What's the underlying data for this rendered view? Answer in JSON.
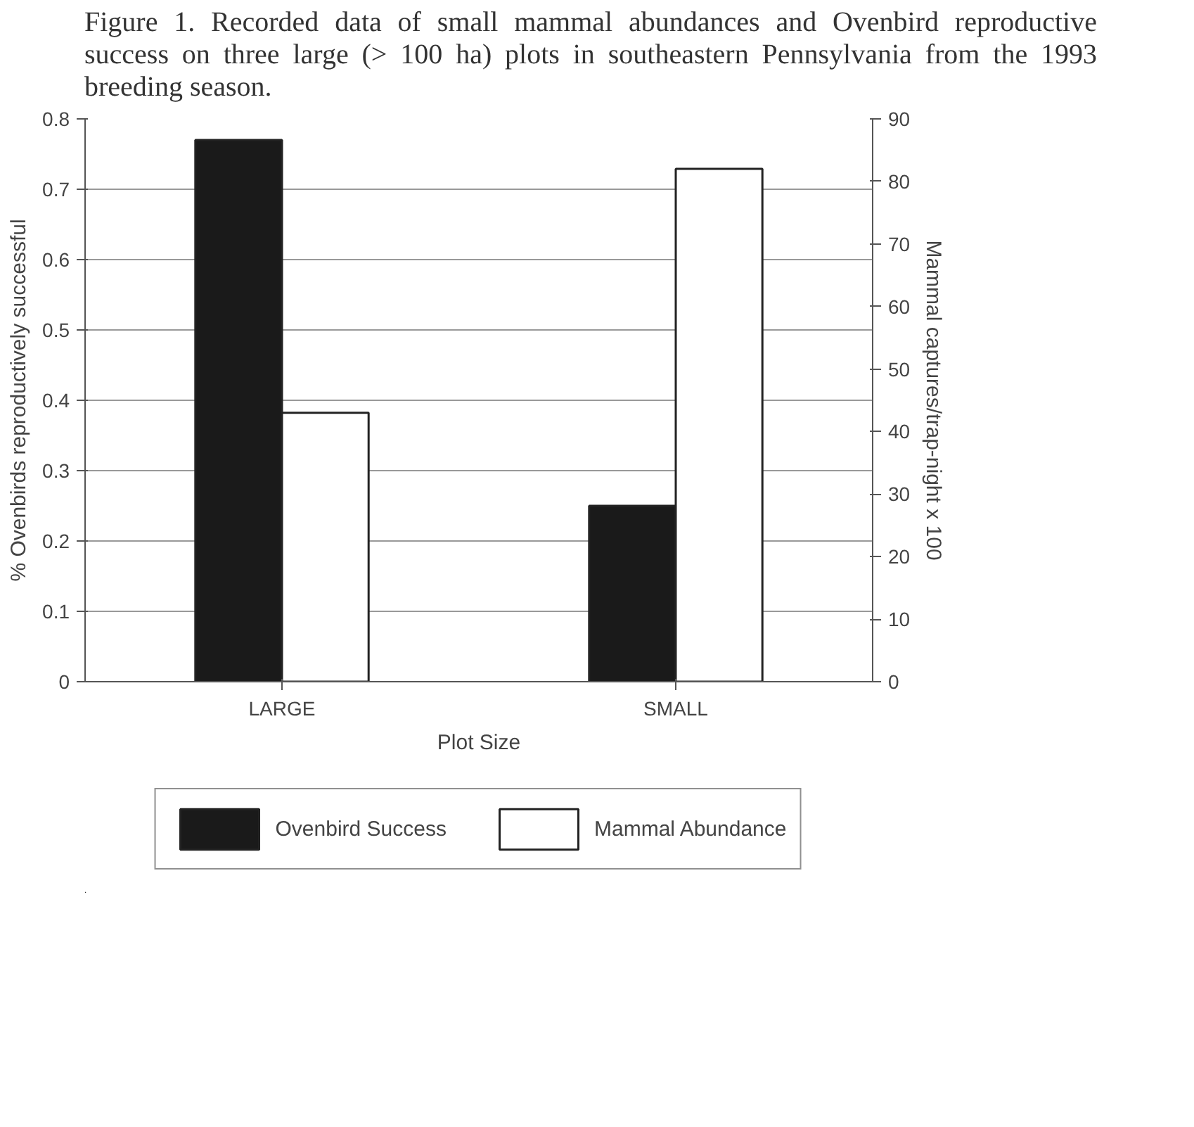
{
  "chart_data": {
    "type": "bar",
    "title": "Figure 1. Recorded data of small mammal abundances and Ovenbird reproductive success on three large (> 100 ha) plots in southeastern Pennsylvania from the 1993 breeding season.",
    "xlabel": "Plot Size",
    "ylabel": "% Ovenbirds reproductively successful",
    "y2label": "Mammal captures/trap-night x 100",
    "categories": [
      "LARGE",
      "SMALL"
    ],
    "series": [
      {
        "name": "Ovenbird Success",
        "color": "#1a1a1a",
        "values": [
          0.77,
          0.25
        ]
      },
      {
        "name": "Mammal Abundance",
        "color": "#ffffff",
        "values": [
          43,
          82
        ],
        "axis": "y2"
      }
    ],
    "ylim": [
      0,
      0.8
    ],
    "yticks": [
      0,
      0.1,
      0.2,
      0.3,
      0.4,
      0.5,
      0.6,
      0.7,
      0.8
    ],
    "y2lim": [
      0,
      90
    ],
    "y2ticks": [
      0,
      10,
      20,
      30,
      40,
      50,
      60,
      70,
      80,
      90
    ],
    "grid": "y",
    "legend": "bottom"
  }
}
